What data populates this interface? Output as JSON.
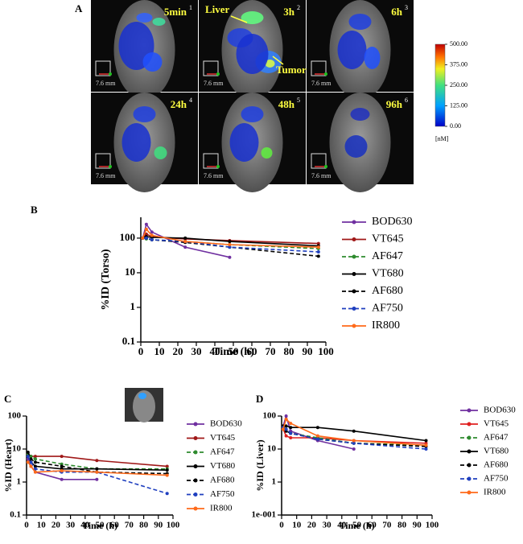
{
  "figure_a": {
    "label": "A",
    "panels": [
      {
        "time": "5min",
        "index": "1"
      },
      {
        "time": "3h",
        "index": "2"
      },
      {
        "time": "6h",
        "index": "3"
      },
      {
        "time": "24h",
        "index": "4"
      },
      {
        "time": "48h",
        "index": "5"
      },
      {
        "time": "96h",
        "index": "6"
      }
    ],
    "scale": "7.6 mm",
    "annotations": [
      "Liver",
      "Tumor"
    ],
    "colorbar": {
      "lim": [
        0,
        500
      ],
      "unit": "[nM]",
      "ticks": [
        {
          "value": 500,
          "label": "500.00"
        },
        {
          "value": 375,
          "label": "375.00"
        },
        {
          "value": 250,
          "label": "250.00"
        },
        {
          "value": 125,
          "label": "125.00"
        },
        {
          "value": 0,
          "label": "0.00"
        }
      ]
    }
  },
  "chart_data": [
    {
      "type": "line",
      "panel": "B",
      "xlabel": "Time (h)",
      "ylabel": "%ID (Torso)",
      "log_y": true,
      "x": [
        1,
        3,
        6,
        24,
        48,
        96
      ],
      "xlim": [
        0,
        100
      ],
      "xticks": [
        0,
        10,
        20,
        30,
        40,
        50,
        60,
        70,
        80,
        90,
        100
      ],
      "ylim": [
        0.1,
        400
      ],
      "yticks": [
        0.1,
        1,
        10,
        100
      ],
      "series": [
        {
          "name": "BOD630",
          "color": "#7030a0",
          "dashed": false,
          "values": [
            100,
            250,
            150,
            55,
            28,
            null
          ]
        },
        {
          "name": "VT645",
          "color": "#a01818",
          "dashed": false,
          "values": [
            100,
            130,
            110,
            95,
            85,
            70
          ]
        },
        {
          "name": "AF647",
          "color": "#2e8b2e",
          "dashed": true,
          "values": [
            100,
            95,
            90,
            80,
            65,
            50
          ]
        },
        {
          "name": "VT680",
          "color": "#000000",
          "dashed": false,
          "values": [
            100,
            110,
            105,
            100,
            80,
            60
          ]
        },
        {
          "name": "AF680",
          "color": "#000000",
          "dashed": true,
          "values": [
            100,
            100,
            90,
            75,
            55,
            30
          ]
        },
        {
          "name": "AF750",
          "color": "#1f3fbf",
          "dashed": true,
          "values": [
            100,
            100,
            90,
            80,
            55,
            40
          ]
        },
        {
          "name": "IR800",
          "color": "#ff6a1a",
          "dashed": false,
          "values": [
            100,
            180,
            120,
            80,
            65,
            55
          ]
        }
      ]
    },
    {
      "type": "line",
      "panel": "C",
      "xlabel": "Time (h)",
      "ylabel": "%ID (Heart)",
      "log_y": true,
      "x": [
        1,
        3,
        6,
        24,
        48,
        96
      ],
      "xlim": [
        0,
        100
      ],
      "xticks": [
        0,
        10,
        20,
        30,
        40,
        50,
        60,
        70,
        80,
        90,
        100
      ],
      "ylim": [
        0.1,
        100
      ],
      "yticks": [
        0.1,
        1,
        10,
        100
      ],
      "series": [
        {
          "name": "BOD630",
          "color": "#7030a0",
          "dashed": false,
          "values": [
            5,
            3,
            2,
            1.2,
            1.2,
            null
          ]
        },
        {
          "name": "VT645",
          "color": "#a01818",
          "dashed": false,
          "values": [
            7,
            6,
            6,
            6,
            4.5,
            3
          ]
        },
        {
          "name": "AF647",
          "color": "#2e8b2e",
          "dashed": true,
          "values": [
            7,
            6,
            5,
            3.5,
            2.5,
            2.5
          ]
        },
        {
          "name": "VT680",
          "color": "#000000",
          "dashed": false,
          "values": [
            6,
            4,
            3,
            2.5,
            2.5,
            2.3
          ]
        },
        {
          "name": "AF680",
          "color": "#000000",
          "dashed": true,
          "values": [
            8,
            5,
            4,
            3,
            2,
            1.8
          ]
        },
        {
          "name": "AF750",
          "color": "#1f3fbf",
          "dashed": true,
          "values": [
            6,
            4,
            2.5,
            2,
            2,
            0.45
          ]
        },
        {
          "name": "IR800",
          "color": "#ff6a1a",
          "dashed": false,
          "values": [
            4,
            3,
            2,
            2.2,
            2,
            1.6
          ]
        }
      ]
    },
    {
      "type": "line",
      "panel": "D",
      "xlabel": "Time (h)",
      "ylabel": "%ID (Liver)",
      "log_y": true,
      "x": [
        1,
        3,
        6,
        24,
        48,
        96
      ],
      "xlim": [
        0,
        100
      ],
      "xticks": [
        0,
        10,
        20,
        30,
        40,
        50,
        60,
        70,
        80,
        90,
        100
      ],
      "ylim": [
        0.1,
        100
      ],
      "yticks": [
        {
          "value": 0.1,
          "label": "1e-001"
        },
        1,
        10,
        100
      ],
      "series": [
        {
          "name": "BOD630",
          "color": "#7030a0",
          "dashed": false,
          "values": [
            50,
            100,
            35,
            18,
            10,
            null
          ]
        },
        {
          "name": "VT645",
          "color": "#e02020",
          "dashed": false,
          "values": [
            40,
            25,
            22,
            22,
            18,
            15
          ]
        },
        {
          "name": "AF647",
          "color": "#2e8b2e",
          "dashed": true,
          "values": [
            45,
            40,
            30,
            22,
            15,
            13
          ]
        },
        {
          "name": "VT680",
          "color": "#000000",
          "dashed": false,
          "values": [
            50,
            50,
            45,
            45,
            35,
            18
          ]
        },
        {
          "name": "AF680",
          "color": "#000000",
          "dashed": true,
          "values": [
            45,
            35,
            30,
            20,
            15,
            12
          ]
        },
        {
          "name": "AF750",
          "color": "#1f3fbf",
          "dashed": true,
          "values": [
            45,
            40,
            30,
            20,
            15,
            10
          ]
        },
        {
          "name": "IR800",
          "color": "#ff6a1a",
          "dashed": false,
          "values": [
            40,
            80,
            60,
            25,
            18,
            13
          ]
        }
      ]
    }
  ]
}
